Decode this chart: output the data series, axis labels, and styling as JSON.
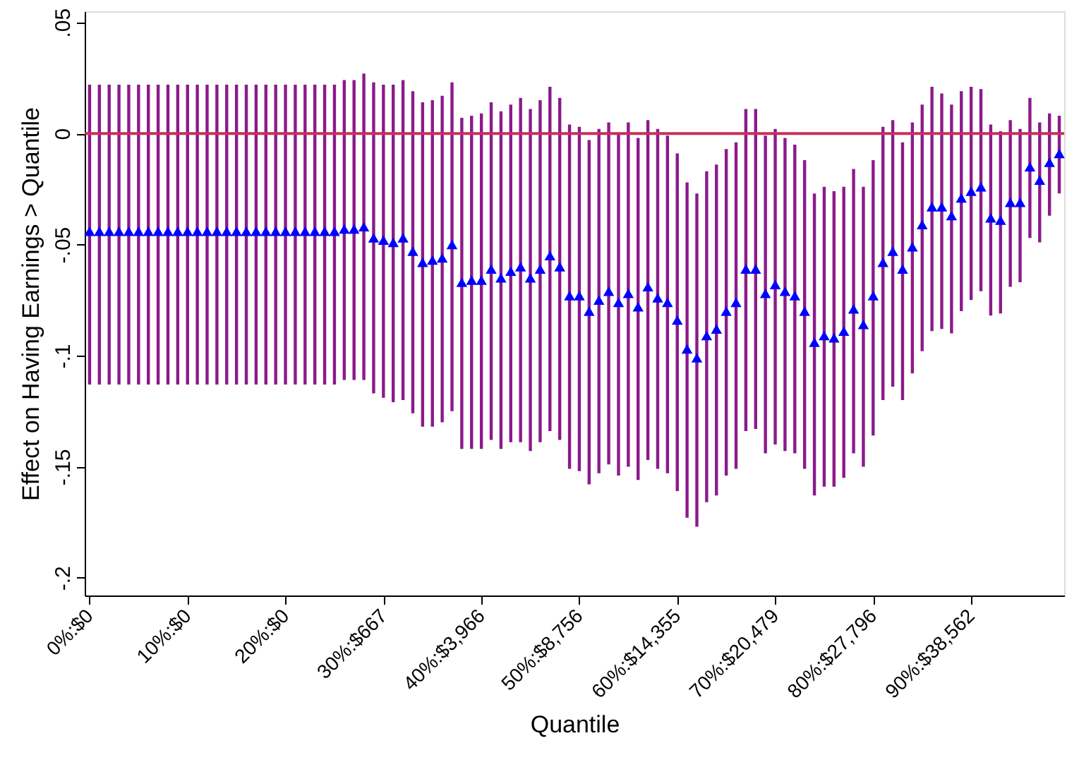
{
  "chart_data": {
    "type": "scatter",
    "xlabel": "Quantile",
    "ylabel": "Effect on Having Earnings > Quantile",
    "categories": [
      "0%:$0",
      null,
      null,
      null,
      null,
      null,
      null,
      null,
      null,
      null,
      "10%:$0",
      null,
      null,
      null,
      null,
      null,
      null,
      null,
      null,
      null,
      "20%:$0",
      null,
      null,
      null,
      null,
      null,
      null,
      null,
      null,
      null,
      "30%:$667",
      null,
      null,
      null,
      null,
      null,
      null,
      null,
      null,
      null,
      "40%:$3,966",
      null,
      null,
      null,
      null,
      null,
      null,
      null,
      null,
      null,
      "50%:$8,756",
      null,
      null,
      null,
      null,
      null,
      null,
      null,
      null,
      null,
      "60%:$14,355",
      null,
      null,
      null,
      null,
      null,
      null,
      null,
      null,
      null,
      "70%:$20,479",
      null,
      null,
      null,
      null,
      null,
      null,
      null,
      null,
      null,
      "80%:$27,796",
      null,
      null,
      null,
      null,
      null,
      null,
      null,
      null,
      null,
      "90%:$38,562",
      null,
      null,
      null,
      null,
      null,
      null,
      null,
      null,
      null
    ],
    "series": [
      {
        "color": "#0000ff",
        "marker": "triangle",
        "values": [
          -0.044,
          -0.044,
          -0.044,
          -0.044,
          -0.044,
          -0.044,
          -0.044,
          -0.044,
          -0.044,
          -0.044,
          -0.044,
          -0.044,
          -0.044,
          -0.044,
          -0.044,
          -0.044,
          -0.044,
          -0.044,
          -0.044,
          -0.044,
          -0.044,
          -0.044,
          -0.044,
          -0.044,
          -0.044,
          -0.044,
          -0.043,
          -0.043,
          -0.042,
          -0.047,
          -0.048,
          -0.049,
          -0.047,
          -0.053,
          -0.058,
          -0.057,
          -0.056,
          -0.05,
          -0.067,
          -0.066,
          -0.066,
          -0.061,
          -0.065,
          -0.062,
          -0.06,
          -0.065,
          -0.061,
          -0.055,
          -0.06,
          -0.073,
          -0.073,
          -0.08,
          -0.075,
          -0.071,
          -0.076,
          -0.072,
          -0.078,
          -0.069,
          -0.074,
          -0.076,
          -0.084,
          -0.097,
          -0.101,
          -0.091,
          -0.088,
          -0.08,
          -0.076,
          -0.061,
          -0.061,
          -0.072,
          -0.068,
          -0.071,
          -0.073,
          -0.08,
          -0.094,
          -0.091,
          -0.092,
          -0.089,
          -0.079,
          -0.086,
          -0.073,
          -0.058,
          -0.053,
          -0.061,
          -0.051,
          -0.041,
          -0.033,
          -0.033,
          -0.037,
          -0.029,
          -0.026,
          -0.024,
          -0.038,
          -0.039,
          -0.031,
          -0.031,
          -0.015,
          -0.021,
          -0.013,
          -0.009
        ],
        "errors": [
          [
            -0.113,
            0.022
          ],
          [
            -0.113,
            0.022
          ],
          [
            -0.113,
            0.022
          ],
          [
            -0.113,
            0.022
          ],
          [
            -0.113,
            0.022
          ],
          [
            -0.113,
            0.022
          ],
          [
            -0.113,
            0.022
          ],
          [
            -0.113,
            0.022
          ],
          [
            -0.113,
            0.022
          ],
          [
            -0.113,
            0.022
          ],
          [
            -0.113,
            0.022
          ],
          [
            -0.113,
            0.022
          ],
          [
            -0.113,
            0.022
          ],
          [
            -0.113,
            0.022
          ],
          [
            -0.113,
            0.022
          ],
          [
            -0.113,
            0.022
          ],
          [
            -0.113,
            0.022
          ],
          [
            -0.113,
            0.022
          ],
          [
            -0.113,
            0.022
          ],
          [
            -0.113,
            0.022
          ],
          [
            -0.113,
            0.022
          ],
          [
            -0.113,
            0.022
          ],
          [
            -0.113,
            0.022
          ],
          [
            -0.113,
            0.022
          ],
          [
            -0.113,
            0.022
          ],
          [
            -0.113,
            0.022
          ],
          [
            -0.111,
            0.024
          ],
          [
            -0.111,
            0.024
          ],
          [
            -0.111,
            0.027
          ],
          [
            -0.117,
            0.023
          ],
          [
            -0.119,
            0.022
          ],
          [
            -0.121,
            0.022
          ],
          [
            -0.12,
            0.024
          ],
          [
            -0.126,
            0.019
          ],
          [
            -0.132,
            0.014
          ],
          [
            -0.132,
            0.015
          ],
          [
            -0.13,
            0.017
          ],
          [
            -0.125,
            0.023
          ],
          [
            -0.142,
            0.007
          ],
          [
            -0.142,
            0.008
          ],
          [
            -0.142,
            0.009
          ],
          [
            -0.138,
            0.014
          ],
          [
            -0.142,
            0.01
          ],
          [
            -0.139,
            0.013
          ],
          [
            -0.139,
            0.016
          ],
          [
            -0.143,
            0.011
          ],
          [
            -0.139,
            0.015
          ],
          [
            -0.134,
            0.021
          ],
          [
            -0.138,
            0.016
          ],
          [
            -0.151,
            0.004
          ],
          [
            -0.152,
            0.003
          ],
          [
            -0.158,
            -0.003
          ],
          [
            -0.153,
            0.002
          ],
          [
            -0.149,
            0.005
          ],
          [
            -0.154,
            0.0
          ],
          [
            -0.15,
            0.005
          ],
          [
            -0.156,
            -0.002
          ],
          [
            -0.147,
            0.006
          ],
          [
            -0.151,
            0.002
          ],
          [
            -0.153,
            -0.001
          ],
          [
            -0.161,
            -0.009
          ],
          [
            -0.173,
            -0.022
          ],
          [
            -0.177,
            -0.027
          ],
          [
            -0.166,
            -0.017
          ],
          [
            -0.163,
            -0.014
          ],
          [
            -0.154,
            -0.007
          ],
          [
            -0.151,
            -0.004
          ],
          [
            -0.134,
            0.011
          ],
          [
            -0.133,
            0.011
          ],
          [
            -0.144,
            -0.001
          ],
          [
            -0.14,
            0.002
          ],
          [
            -0.143,
            -0.002
          ],
          [
            -0.144,
            -0.005
          ],
          [
            -0.151,
            -0.012
          ],
          [
            -0.163,
            -0.027
          ],
          [
            -0.159,
            -0.024
          ],
          [
            -0.159,
            -0.026
          ],
          [
            -0.155,
            -0.024
          ],
          [
            -0.144,
            -0.016
          ],
          [
            -0.15,
            -0.024
          ],
          [
            -0.136,
            -0.012
          ],
          [
            -0.12,
            0.003
          ],
          [
            -0.114,
            0.006
          ],
          [
            -0.12,
            -0.004
          ],
          [
            -0.108,
            0.005
          ],
          [
            -0.098,
            0.013
          ],
          [
            -0.089,
            0.021
          ],
          [
            -0.088,
            0.018
          ],
          [
            -0.09,
            0.013
          ],
          [
            -0.08,
            0.019
          ],
          [
            -0.075,
            0.021
          ],
          [
            -0.071,
            0.02
          ],
          [
            -0.082,
            0.004
          ],
          [
            -0.081,
            0.001
          ],
          [
            -0.069,
            0.006
          ],
          [
            -0.067,
            0.002
          ],
          [
            -0.047,
            0.016
          ],
          [
            -0.049,
            0.005
          ],
          [
            -0.037,
            0.009
          ],
          [
            -0.027,
            0.008
          ]
        ]
      }
    ],
    "ylim": [
      -0.208,
      0.055
    ],
    "yticks": [
      {
        "value": 0.05,
        "label": ".05"
      },
      {
        "value": 0,
        "label": "0"
      },
      {
        "value": -0.05,
        "label": "-.05"
      },
      {
        "value": -0.1,
        "label": "-.1"
      },
      {
        "value": -0.15,
        "label": "-.15"
      },
      {
        "value": -0.2,
        "label": "-.2"
      }
    ],
    "ref_lines": [
      {
        "axis": "y",
        "value": 0,
        "color": "#c8305a"
      }
    ],
    "grid": false
  }
}
